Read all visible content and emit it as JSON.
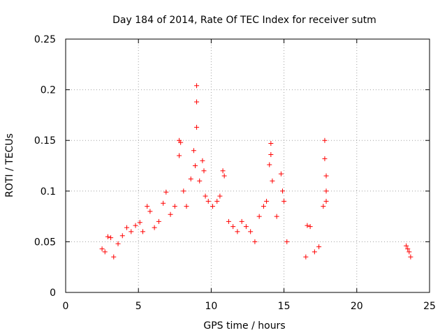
{
  "chart_data": {
    "type": "scatter",
    "title": "Day 184 of 2014, Rate Of TEC Index for receiver sutm",
    "xlabel": "GPS time / hours",
    "ylabel": "ROTI / TECUs",
    "xlim": [
      0,
      25
    ],
    "ylim": [
      0,
      0.25
    ],
    "x_ticks": [
      0,
      5,
      10,
      15,
      20,
      25
    ],
    "x_tick_labels": [
      "0",
      "5",
      "10",
      "15",
      "20",
      "25"
    ],
    "y_ticks": [
      0,
      0.05,
      0.1,
      0.15,
      0.2,
      0.25
    ],
    "y_tick_labels": [
      "0",
      "0.05",
      "0.1",
      "0.15",
      "0.2",
      "0.25"
    ],
    "grid": true,
    "marker": "+",
    "color": "#ff0000",
    "x_ranges_with_data": [
      [
        2.4,
        15.3
      ],
      [
        16.3,
        18.0
      ],
      [
        23.3,
        23.8
      ]
    ],
    "series": [
      {
        "points": [
          [
            2.5,
            0.043
          ],
          [
            2.7,
            0.04
          ],
          [
            2.9,
            0.055
          ],
          [
            3.1,
            0.054
          ],
          [
            3.3,
            0.035
          ],
          [
            3.6,
            0.048
          ],
          [
            3.9,
            0.056
          ],
          [
            4.2,
            0.064
          ],
          [
            4.5,
            0.06
          ],
          [
            4.8,
            0.066
          ],
          [
            5.1,
            0.069
          ],
          [
            5.3,
            0.06
          ],
          [
            5.6,
            0.085
          ],
          [
            5.8,
            0.08
          ],
          [
            6.1,
            0.064
          ],
          [
            6.4,
            0.07
          ],
          [
            6.7,
            0.088
          ],
          [
            6.9,
            0.099
          ],
          [
            7.2,
            0.077
          ],
          [
            7.5,
            0.085
          ],
          [
            7.8,
            0.15
          ],
          [
            7.9,
            0.148
          ],
          [
            7.8,
            0.135
          ],
          [
            8.1,
            0.1
          ],
          [
            8.3,
            0.085
          ],
          [
            8.6,
            0.112
          ],
          [
            8.8,
            0.14
          ],
          [
            8.9,
            0.125
          ],
          [
            9.0,
            0.204
          ],
          [
            9.0,
            0.188
          ],
          [
            9.0,
            0.163
          ],
          [
            9.2,
            0.11
          ],
          [
            9.4,
            0.13
          ],
          [
            9.5,
            0.12
          ],
          [
            9.6,
            0.095
          ],
          [
            9.8,
            0.09
          ],
          [
            10.1,
            0.085
          ],
          [
            10.4,
            0.09
          ],
          [
            10.6,
            0.095
          ],
          [
            10.8,
            0.12
          ],
          [
            10.9,
            0.115
          ],
          [
            11.2,
            0.07
          ],
          [
            11.5,
            0.065
          ],
          [
            11.8,
            0.06
          ],
          [
            12.1,
            0.07
          ],
          [
            12.4,
            0.065
          ],
          [
            12.7,
            0.06
          ],
          [
            13.0,
            0.05
          ],
          [
            13.3,
            0.075
          ],
          [
            13.6,
            0.085
          ],
          [
            13.8,
            0.09
          ],
          [
            14.0,
            0.126
          ],
          [
            14.1,
            0.147
          ],
          [
            14.1,
            0.136
          ],
          [
            14.2,
            0.11
          ],
          [
            14.5,
            0.075
          ],
          [
            14.8,
            0.117
          ],
          [
            14.9,
            0.1
          ],
          [
            15.0,
            0.09
          ],
          [
            15.2,
            0.05
          ],
          [
            16.6,
            0.066
          ],
          [
            16.8,
            0.065
          ],
          [
            16.5,
            0.035
          ],
          [
            17.1,
            0.04
          ],
          [
            17.4,
            0.045
          ],
          [
            17.7,
            0.085
          ],
          [
            17.8,
            0.15
          ],
          [
            17.8,
            0.132
          ],
          [
            17.9,
            0.115
          ],
          [
            17.9,
            0.1
          ],
          [
            17.9,
            0.09
          ],
          [
            23.4,
            0.046
          ],
          [
            23.5,
            0.043
          ],
          [
            23.6,
            0.04
          ],
          [
            23.7,
            0.035
          ]
        ]
      }
    ]
  }
}
